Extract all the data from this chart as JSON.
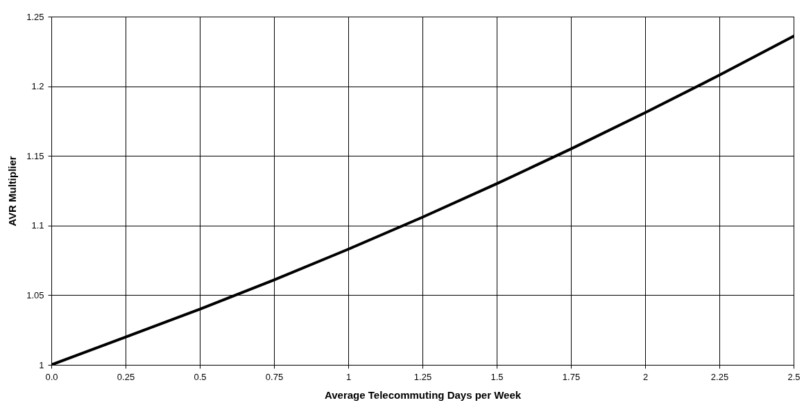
{
  "chart_data": {
    "type": "line",
    "xlabel": "Average Telecommuting Days per Week",
    "ylabel": "AVR Multiplier",
    "x": [
      0,
      0.25,
      0.5,
      0.75,
      1,
      1.25,
      1.5,
      1.75,
      2,
      2.25,
      2.5
    ],
    "series": [
      {
        "color": "#000000",
        "values": [
          1.0,
          1.02,
          1.04,
          1.061,
          1.083,
          1.106,
          1.13,
          1.155,
          1.181,
          1.208,
          1.236
        ]
      }
    ],
    "xlim": [
      0,
      2.5
    ],
    "xticks": [
      {
        "value": 0,
        "label": "0.0"
      },
      0.25,
      0.5,
      0.75,
      1,
      1.25,
      1.5,
      1.75,
      2,
      2.25,
      2.5
    ],
    "ylim": [
      1,
      1.25
    ],
    "yticks": [
      1,
      1.05,
      1.1,
      1.15,
      1.2,
      1.25
    ],
    "grid": true,
    "marker": "none",
    "line_style": "solid"
  }
}
